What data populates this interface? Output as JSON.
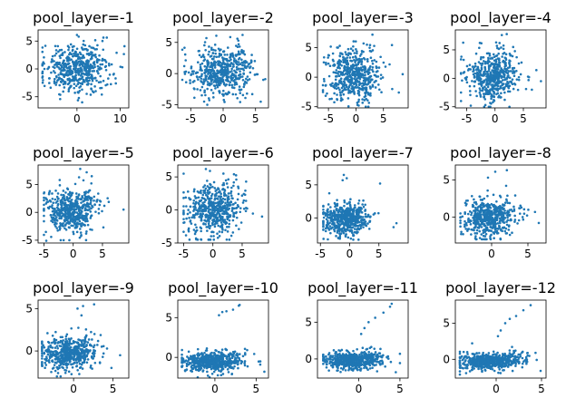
{
  "chart_data": [
    {
      "type": "scatter",
      "title": "pool_layer=-1",
      "xlim": [
        -9,
        12
      ],
      "ylim": [
        -7,
        7
      ],
      "xticks": [
        0,
        10
      ],
      "yticks": [
        -5,
        0,
        5
      ],
      "color": "#1f77b4",
      "grid": false,
      "cloud": {
        "n": 520,
        "cx": 0,
        "cy": 0,
        "sx": 3.6,
        "sy": 2.1,
        "xmin": -8,
        "xmax": 11,
        "ymin": -6.3,
        "ymax": 6.3,
        "seed": 101
      },
      "outliers": [
        [
          0,
          6.1
        ],
        [
          0.4,
          5.8
        ],
        [
          10.5,
          0.3
        ],
        [
          -7.8,
          1.2
        ],
        [
          -8,
          -0.8
        ],
        [
          9,
          -2.6
        ],
        [
          1.2,
          -6.0
        ]
      ]
    },
    {
      "type": "scatter",
      "title": "pool_layer=-2",
      "xlim": [
        -7,
        7
      ],
      "ylim": [
        -5.5,
        7
      ],
      "xticks": [
        -5,
        0,
        5
      ],
      "yticks": [
        -5,
        0,
        5
      ],
      "color": "#1f77b4",
      "grid": false,
      "cloud": {
        "n": 520,
        "cx": -0.3,
        "cy": 0.3,
        "sx": 2.3,
        "sy": 2.0,
        "xmin": -6.3,
        "xmax": 6.5,
        "ymin": -5,
        "ymax": 6.3,
        "seed": 202
      },
      "outliers": [
        [
          3,
          6.2
        ],
        [
          2.2,
          5.6
        ],
        [
          6.2,
          -1.0
        ],
        [
          5.8,
          -4.5
        ],
        [
          -6,
          1.2
        ],
        [
          4.5,
          -3.3
        ]
      ]
    },
    {
      "type": "scatter",
      "title": "pool_layer=-3",
      "xlim": [
        -7,
        9.5
      ],
      "ylim": [
        -5.2,
        8
      ],
      "xticks": [
        -5,
        0,
        5
      ],
      "yticks": [
        -5,
        0,
        5
      ],
      "color": "#1f77b4",
      "grid": false,
      "cloud": {
        "n": 520,
        "cx": -0.6,
        "cy": 0.3,
        "sx": 2.4,
        "sy": 2.2,
        "xmin": -6,
        "xmax": 8.8,
        "ymin": -5,
        "ymax": 7.5,
        "seed": 303
      },
      "outliers": [
        [
          3,
          7.2
        ],
        [
          2,
          5.5
        ],
        [
          8.5,
          0.5
        ],
        [
          7.8,
          -2.6
        ],
        [
          6.6,
          -2.0
        ],
        [
          0.5,
          -4.8
        ]
      ]
    },
    {
      "type": "scatter",
      "title": "pool_layer=-4",
      "xlim": [
        -7,
        9
      ],
      "ylim": [
        -5.2,
        8.5
      ],
      "xticks": [
        -5,
        0,
        5
      ],
      "yticks": [
        -5,
        0,
        5
      ],
      "color": "#1f77b4",
      "grid": false,
      "cloud": {
        "n": 520,
        "cx": -0.5,
        "cy": 0.2,
        "sx": 2.3,
        "sy": 2.1,
        "xmin": -6,
        "xmax": 8.5,
        "ymin": -5,
        "ymax": 8,
        "seed": 404
      },
      "outliers": [
        [
          1.2,
          7.6
        ],
        [
          0.8,
          6.2
        ],
        [
          3.2,
          5.5
        ],
        [
          8.1,
          -0.5
        ],
        [
          6.5,
          -2.0
        ],
        [
          -6,
          -2.5
        ]
      ]
    },
    {
      "type": "scatter",
      "title": "pool_layer=-5",
      "xlim": [
        -6,
        9.5
      ],
      "ylim": [
        -5.5,
        8.5
      ],
      "xticks": [
        -5,
        0,
        5
      ],
      "yticks": [
        -5,
        0,
        5
      ],
      "color": "#1f77b4",
      "grid": false,
      "cloud": {
        "n": 520,
        "cx": -0.2,
        "cy": 0.2,
        "sx": 2.2,
        "sy": 1.9,
        "xmin": -5,
        "xmax": 8.8,
        "ymin": -5,
        "ymax": 8,
        "seed": 505
      },
      "outliers": [
        [
          1.2,
          7.8
        ],
        [
          2.3,
          7.2
        ],
        [
          1.0,
          6.3
        ],
        [
          3.1,
          5.2
        ],
        [
          8.6,
          0.5
        ],
        [
          -4.6,
          -5.1
        ]
      ]
    },
    {
      "type": "scatter",
      "title": "pool_layer=-6",
      "xlim": [
        -6,
        9.5
      ],
      "ylim": [
        -5,
        6.8
      ],
      "xticks": [
        -5,
        0,
        5
      ],
      "yticks": [
        -5,
        0,
        5
      ],
      "color": "#1f77b4",
      "grid": false,
      "cloud": {
        "n": 520,
        "cx": 0,
        "cy": 0,
        "sx": 2.3,
        "sy": 1.9,
        "xmin": -5,
        "xmax": 8.6,
        "ymin": -4.5,
        "ymax": 6.3,
        "seed": 606
      },
      "outliers": [
        [
          -1.2,
          6.2
        ],
        [
          -0.5,
          5.9
        ],
        [
          1.8,
          5.5
        ],
        [
          3.6,
          5.4
        ],
        [
          4.0,
          4.6
        ],
        [
          8.4,
          -1.0
        ]
      ]
    },
    {
      "type": "scatter",
      "title": "pool_layer=-7",
      "xlim": [
        -5.5,
        10
      ],
      "ylim": [
        -3.8,
        8
      ],
      "xticks": [
        -5,
        0,
        5
      ],
      "yticks": [
        0,
        5
      ],
      "color": "#1f77b4",
      "grid": false,
      "cloud": {
        "n": 520,
        "cx": -0.6,
        "cy": -0.2,
        "sx": 2.0,
        "sy": 1.3,
        "xmin": -4.5,
        "xmax": 8.2,
        "ymin": -3.3,
        "ymax": 7.5,
        "seed": 707
      },
      "outliers": [
        [
          -1.0,
          6.5
        ],
        [
          -0.5,
          6.0
        ],
        [
          -1.2,
          5.7
        ],
        [
          5.2,
          5.2
        ],
        [
          8.0,
          -0.8
        ],
        [
          7.5,
          -1.4
        ]
      ]
    },
    {
      "type": "scatter",
      "title": "pool_layer=-8",
      "xlim": [
        -5,
        7.5
      ],
      "ylim": [
        -3.5,
        7
      ],
      "xticks": [
        0,
        5
      ],
      "yticks": [
        0,
        5
      ],
      "color": "#1f77b4",
      "grid": false,
      "cloud": {
        "n": 520,
        "cx": -0.3,
        "cy": -0.1,
        "sx": 1.9,
        "sy": 1.2,
        "xmin": -4.3,
        "xmax": 6.8,
        "ymin": -3,
        "ymax": 6.5,
        "seed": 808
      },
      "outliers": [
        [
          0.5,
          6.1
        ],
        [
          2.1,
          6.3
        ],
        [
          -0.5,
          5.3
        ],
        [
          2.0,
          4.2
        ],
        [
          6.5,
          -0.8
        ],
        [
          -4.2,
          -2.3
        ]
      ]
    },
    {
      "type": "scatter",
      "title": "pool_layer=-9",
      "xlim": [
        -4.5,
        7
      ],
      "ylim": [
        -3.2,
        6
      ],
      "xticks": [
        0,
        5
      ],
      "yticks": [
        0,
        5
      ],
      "color": "#1f77b4",
      "grid": false,
      "cloud": {
        "n": 520,
        "cx": -0.5,
        "cy": -0.3,
        "sx": 1.8,
        "sy": 1.0,
        "xmin": -4,
        "xmax": 6.2,
        "ymin": -3,
        "ymax": 5.6,
        "seed": 909
      },
      "outliers": [
        [
          0.5,
          5.0
        ],
        [
          1.2,
          5.3
        ],
        [
          2.6,
          5.5
        ],
        [
          1.0,
          4.2
        ],
        [
          5.9,
          -0.5
        ],
        [
          4.8,
          -2.0
        ]
      ]
    },
    {
      "type": "scatter",
      "title": "pool_layer=-10",
      "xlim": [
        -4.5,
        6.5
      ],
      "ylim": [
        -2.6,
        7.2
      ],
      "xticks": [
        0,
        5
      ],
      "yticks": [
        0,
        5
      ],
      "color": "#1f77b4",
      "grid": false,
      "cloud": {
        "n": 560,
        "cx": -0.5,
        "cy": -0.6,
        "sx": 1.9,
        "sy": 0.6,
        "xmin": -4,
        "xmax": 6,
        "ymin": -2.5,
        "ymax": 6.8,
        "seed": 1010
      },
      "outliers": [
        [
          0.5,
          5.3
        ],
        [
          0.9,
          5.7
        ],
        [
          1.4,
          5.8
        ],
        [
          2.2,
          6.0
        ],
        [
          2.9,
          6.5
        ],
        [
          3.0,
          6.6
        ],
        [
          5.5,
          -0.9
        ],
        [
          6.0,
          -1.8
        ]
      ]
    },
    {
      "type": "scatter",
      "title": "pool_layer=-11",
      "xlim": [
        -5,
        6
      ],
      "ylim": [
        -2.6,
        8
      ],
      "xticks": [
        0,
        5
      ],
      "yticks": [
        0,
        5
      ],
      "color": "#1f77b4",
      "grid": false,
      "cloud": {
        "n": 560,
        "cx": -0.6,
        "cy": -0.2,
        "sx": 1.8,
        "sy": 0.6,
        "xmin": -4.3,
        "xmax": 5,
        "ymin": -2.2,
        "ymax": 7.5,
        "seed": 1111
      },
      "outliers": [
        [
          0.3,
          3.4
        ],
        [
          0.7,
          4.2
        ],
        [
          1.2,
          5.0
        ],
        [
          2.0,
          5.6
        ],
        [
          3.0,
          6.3
        ],
        [
          3.8,
          7.1
        ],
        [
          4.0,
          7.5
        ],
        [
          4.5,
          -1.8
        ]
      ]
    },
    {
      "type": "scatter",
      "title": "pool_layer=-12",
      "xlim": [
        -4.5,
        5.5
      ],
      "ylim": [
        -2.6,
        8.2
      ],
      "xticks": [
        0,
        5
      ],
      "yticks": [
        0,
        5
      ],
      "color": "#1f77b4",
      "grid": false,
      "cloud": {
        "n": 560,
        "cx": -0.5,
        "cy": -0.3,
        "sx": 1.8,
        "sy": 0.6,
        "xmin": -4,
        "xmax": 5.2,
        "ymin": -2.3,
        "ymax": 7.8,
        "seed": 1212
      },
      "outliers": [
        [
          0.2,
          3.2
        ],
        [
          0.5,
          4.0
        ],
        [
          1.0,
          5.0
        ],
        [
          1.5,
          5.6
        ],
        [
          2.2,
          6.0
        ],
        [
          3.0,
          6.8
        ],
        [
          3.8,
          7.5
        ],
        [
          4.9,
          -1.6
        ]
      ]
    }
  ]
}
